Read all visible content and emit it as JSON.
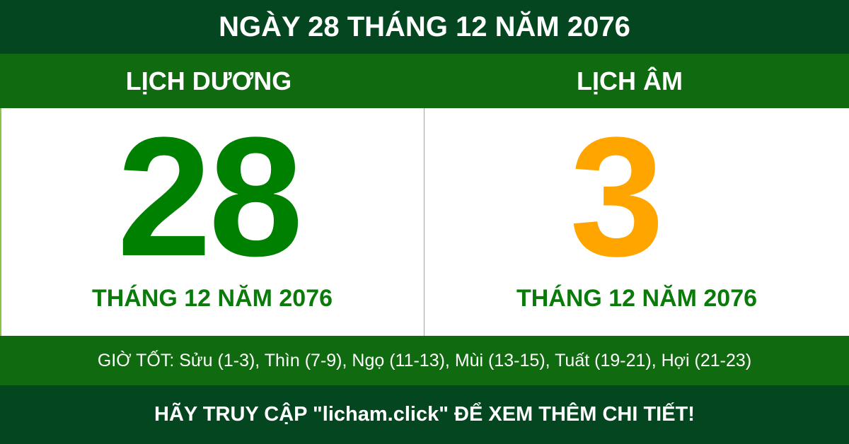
{
  "header": {
    "title": "NGÀY 28 THÁNG 12 NĂM 2076"
  },
  "solar": {
    "label": "LỊCH DƯƠNG",
    "day": "28",
    "month_year": "THÁNG 12 NĂM 2076"
  },
  "lunar": {
    "label": "LỊCH ÂM",
    "day": "3",
    "month_year": "THÁNG 12 NĂM 2076"
  },
  "good_hours": "GIỜ TỐT: Sửu (1-3), Thìn (7-9), Ngọ (11-13), Mùi (13-15), Tuất (19-21), Hợi (21-23)",
  "footer": "HÃY TRUY CẬP \"licham.click\" ĐỂ XEM THÊM CHI TIẾT!",
  "colors": {
    "dark_green": "#034620",
    "band_green": "#106a10",
    "solar_day": "#008000",
    "lunar_day": "#ffa500"
  }
}
